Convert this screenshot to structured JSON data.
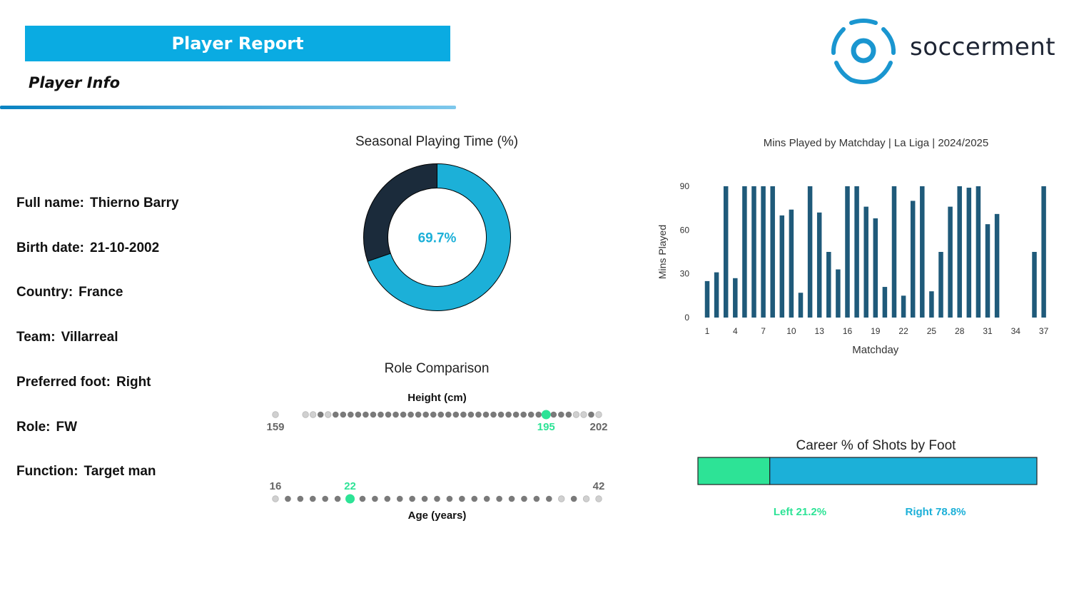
{
  "header": {
    "banner_title": "Player Report",
    "section_title": "Player Info",
    "brand_name": "soccerment"
  },
  "colors": {
    "accent": "#0aabe2",
    "donut_fill": "#1cb0d8",
    "donut_rest": "#1b2b3b",
    "bar": "#1f5a7a",
    "highlight": "#2de396",
    "left_foot": "#2de396",
    "right_foot": "#1cb0d8"
  },
  "player_info": [
    {
      "label": "Full name:",
      "value": "Thierno Barry"
    },
    {
      "label": "Birth date:",
      "value": "21-10-2002"
    },
    {
      "label": "Country:",
      "value": "France"
    },
    {
      "label": "Team:",
      "value": "Villarreal"
    },
    {
      "label": "Preferred foot:",
      "value": "Right"
    },
    {
      "label": "Role:",
      "value": "FW"
    },
    {
      "label": "Function:",
      "value": "Target man"
    }
  ],
  "role_comparison": {
    "title": "Role Comparison"
  },
  "chart_data": [
    {
      "type": "pie",
      "title": "Seasonal Playing Time (%)",
      "values": [
        69.7,
        30.3
      ],
      "center_label": "69.7%"
    },
    {
      "type": "bar",
      "title": "Mins Played by Matchday | La Liga | 2024/2025",
      "xlabel": "Matchday",
      "ylabel": "Mins Played",
      "ylim": [
        0,
        90
      ],
      "xticks": [
        "1",
        "4",
        "7",
        "10",
        "13",
        "16",
        "19",
        "22",
        "25",
        "28",
        "31",
        "34",
        "37"
      ],
      "yticks": [
        "0",
        "30",
        "60",
        "90"
      ],
      "categories": [
        1,
        2,
        3,
        4,
        5,
        6,
        7,
        8,
        9,
        10,
        11,
        12,
        13,
        14,
        15,
        16,
        17,
        18,
        19,
        20,
        21,
        22,
        23,
        24,
        25,
        26,
        27,
        28,
        29,
        30,
        31,
        32,
        33,
        34,
        35,
        36,
        37
      ],
      "values": [
        25,
        31,
        90,
        27,
        90,
        90,
        90,
        90,
        70,
        74,
        17,
        90,
        72,
        45,
        33,
        90,
        90,
        76,
        68,
        21,
        90,
        15,
        80,
        90,
        18,
        45,
        76,
        90,
        89,
        90,
        64,
        71,
        0,
        0,
        0,
        45,
        90
      ]
    },
    {
      "type": "scatter",
      "title": "Height (cm)",
      "min_label": "159",
      "max_label": "202",
      "value_label": "195",
      "range": [
        159,
        202
      ],
      "player_value": 195,
      "points": [
        159,
        163,
        164,
        165,
        166,
        167,
        168,
        169,
        170,
        171,
        172,
        173,
        174,
        175,
        176,
        177,
        178,
        179,
        180,
        181,
        182,
        183,
        184,
        185,
        186,
        187,
        188,
        189,
        190,
        191,
        192,
        193,
        194,
        195,
        196,
        197,
        198,
        199,
        200,
        201,
        202
      ],
      "point_shades": [
        "l",
        "l",
        "l",
        "d",
        "l",
        "d",
        "d",
        "d",
        "d",
        "d",
        "d",
        "d",
        "d",
        "d",
        "d",
        "d",
        "d",
        "d",
        "d",
        "d",
        "d",
        "d",
        "d",
        "d",
        "d",
        "d",
        "d",
        "d",
        "d",
        "d",
        "d",
        "d",
        "d",
        "d",
        "d",
        "d",
        "d",
        "l",
        "l",
        "d",
        "l"
      ]
    },
    {
      "type": "scatter",
      "title": "Age (years)",
      "min_label": "16",
      "max_label": "42",
      "value_label": "22",
      "range": [
        16,
        42
      ],
      "player_value": 22,
      "points": [
        16,
        17,
        18,
        19,
        20,
        21,
        22,
        23,
        24,
        25,
        26,
        27,
        28,
        29,
        30,
        31,
        32,
        33,
        34,
        35,
        36,
        37,
        38,
        39,
        40,
        41,
        42
      ],
      "point_shades": [
        "l",
        "d",
        "d",
        "d",
        "d",
        "d",
        "d",
        "d",
        "d",
        "d",
        "d",
        "d",
        "d",
        "d",
        "d",
        "d",
        "d",
        "d",
        "d",
        "d",
        "d",
        "d",
        "d",
        "l",
        "d",
        "l",
        "l"
      ]
    },
    {
      "type": "bar",
      "title": "Career % of Shots by Foot",
      "categories": [
        "Left",
        "Right"
      ],
      "values": [
        21.2,
        78.8
      ],
      "left_label": "Left 21.2%",
      "right_label": "Right 78.8%"
    }
  ]
}
